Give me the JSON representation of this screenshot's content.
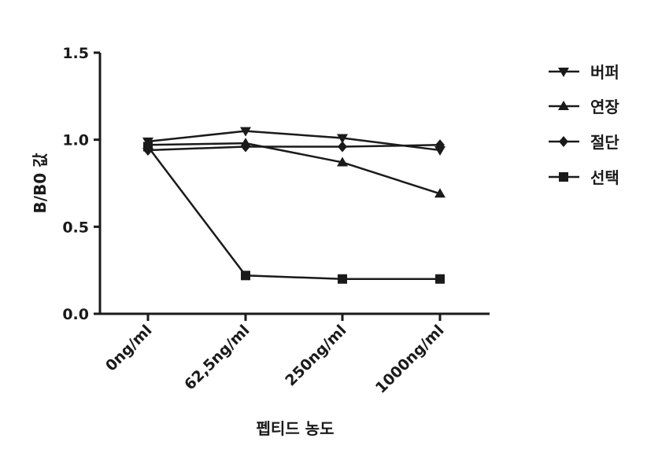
{
  "chart_data": {
    "type": "line",
    "categories": [
      "0ng/ml",
      "62,5ng/ml",
      "250ng/ml",
      "1000ng/ml"
    ],
    "series": [
      {
        "name": "버퍼",
        "marker": "triangle-down",
        "values": [
          0.99,
          1.05,
          1.01,
          0.94
        ]
      },
      {
        "name": "연장",
        "marker": "triangle-up",
        "values": [
          0.97,
          0.98,
          0.87,
          0.69
        ]
      },
      {
        "name": "절단",
        "marker": "diamond",
        "values": [
          0.94,
          0.96,
          0.96,
          0.97
        ]
      },
      {
        "name": "선택",
        "marker": "square",
        "values": [
          0.96,
          0.22,
          0.2,
          0.2
        ]
      }
    ],
    "xlabel": "펩티드 농도",
    "ylabel": "B/B0 값",
    "ylim": [
      0.0,
      1.5
    ],
    "yticks": [
      "0.0",
      "0.5",
      "1.0",
      "1.5"
    ],
    "legend_position": "right",
    "grid": false,
    "line_color": "#1a1a1a"
  }
}
